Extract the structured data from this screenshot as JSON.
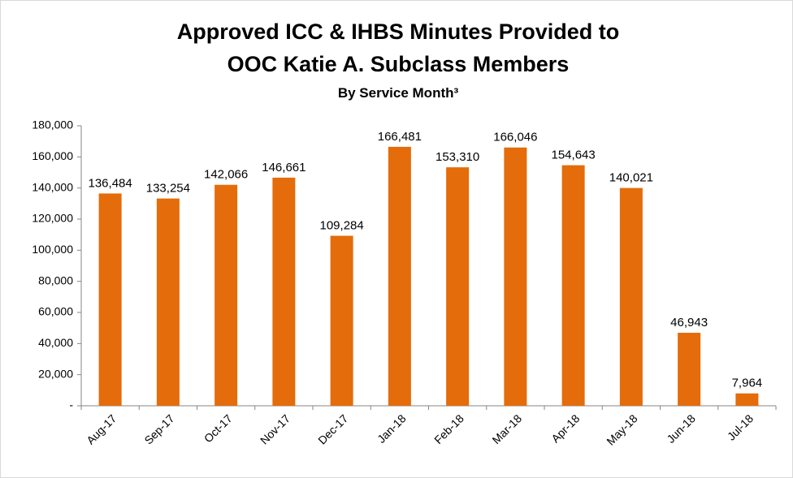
{
  "chart_data": {
    "type": "bar",
    "title": [
      "Approved ICC & IHBS Minutes Provided to",
      "OOC Katie A. Subclass Members"
    ],
    "subtitle": "By Service Month³",
    "categories": [
      "Aug-17",
      "Sep-17",
      "Oct-17",
      "Nov-17",
      "Dec-17",
      "Jan-18",
      "Feb-18",
      "Mar-18",
      "Apr-18",
      "May-18",
      "Jun-18",
      "Jul-18"
    ],
    "values": [
      136484,
      133254,
      142066,
      146661,
      109284,
      166481,
      153310,
      166046,
      154643,
      140021,
      46943,
      7964
    ],
    "value_labels": [
      "136,484",
      "133,254",
      "142,066",
      "146,661",
      "109,284",
      "166,481",
      "153,310",
      "166,046",
      "154,643",
      "140,021",
      "46,943",
      "7,964"
    ],
    "color": "#e46c0a",
    "ylim": [
      0,
      180000
    ],
    "yticks": [
      {
        "value": 0,
        "label": "-"
      },
      {
        "value": 20000,
        "label": "20,000"
      },
      {
        "value": 40000,
        "label": "40,000"
      },
      {
        "value": 60000,
        "label": "60,000"
      },
      {
        "value": 80000,
        "label": "80,000"
      },
      {
        "value": 100000,
        "label": "100,000"
      },
      {
        "value": 120000,
        "label": "120,000"
      },
      {
        "value": 140000,
        "label": "140,000"
      },
      {
        "value": 160000,
        "label": "160,000"
      },
      {
        "value": 180000,
        "label": "180,000"
      }
    ],
    "grid": false
  }
}
